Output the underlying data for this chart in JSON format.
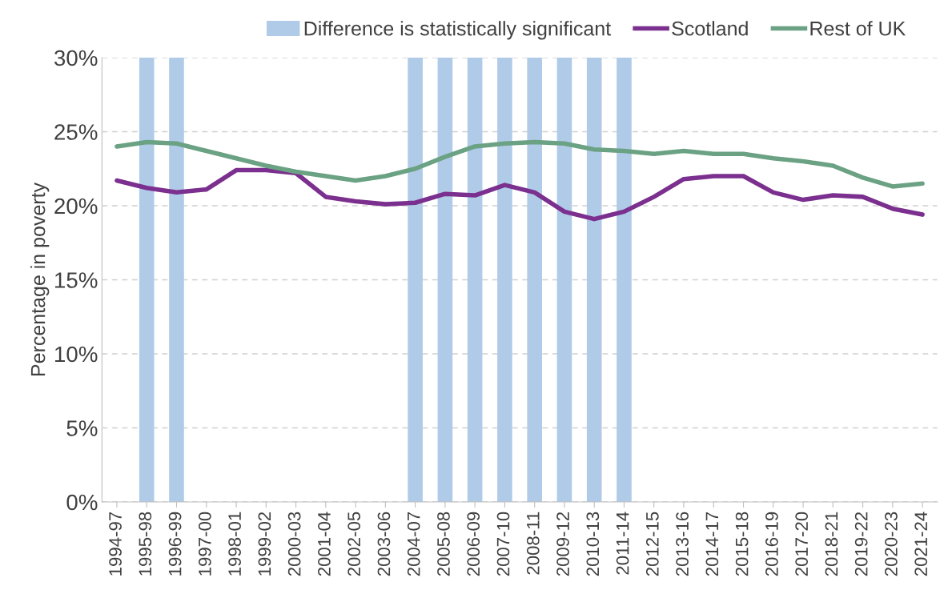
{
  "chart_data": {
    "type": "line",
    "ylabel": "Percentage in poverty",
    "categories": [
      "1994-97",
      "1995-98",
      "1996-99",
      "1997-00",
      "1998-01",
      "1999-02",
      "2000-03",
      "2001-04",
      "2002-05",
      "2003-06",
      "2004-07",
      "2005-08",
      "2006-09",
      "2007-10",
      "2008-11",
      "2009-12",
      "2010-13",
      "2011-14",
      "2012-15",
      "2013-16",
      "2014-17",
      "2015-18",
      "2016-19",
      "2017-20",
      "2018-21",
      "2019-22",
      "2020-23",
      "2021-24"
    ],
    "series": [
      {
        "name": "Difference is statistically significant",
        "type": "bar",
        "color": "#b0cbe8",
        "values": [
          null,
          30,
          30,
          null,
          null,
          null,
          null,
          null,
          null,
          null,
          30,
          30,
          30,
          30,
          30,
          30,
          30,
          30,
          null,
          null,
          null,
          null,
          null,
          null,
          null,
          null,
          null,
          null
        ]
      },
      {
        "name": "Scotland",
        "color": "#7b2f8e",
        "values": [
          21.7,
          21.2,
          20.9,
          21.1,
          22.4,
          22.4,
          22.2,
          20.6,
          20.3,
          20.1,
          20.2,
          20.8,
          20.7,
          21.4,
          20.9,
          19.6,
          19.1,
          19.6,
          20.6,
          21.8,
          22.0,
          22.0,
          20.9,
          20.4,
          20.7,
          20.6,
          19.8,
          19.4
        ]
      },
      {
        "name": "Rest of UK",
        "color": "#6aa283",
        "values": [
          24.0,
          24.3,
          24.2,
          23.7,
          23.2,
          22.7,
          22.3,
          22.0,
          21.7,
          22.0,
          22.5,
          23.3,
          24.0,
          24.2,
          24.3,
          24.2,
          23.8,
          23.7,
          23.5,
          23.7,
          23.5,
          23.5,
          23.2,
          23.0,
          22.7,
          21.9,
          21.3,
          21.5
        ]
      }
    ],
    "ylim": [
      0,
      30
    ],
    "yticks": [
      {
        "value": 0,
        "label": "0%"
      },
      {
        "value": 5,
        "label": "5%"
      },
      {
        "value": 10,
        "label": "10%"
      },
      {
        "value": 15,
        "label": "15%"
      },
      {
        "value": 20,
        "label": "20%"
      },
      {
        "value": 25,
        "label": "25%"
      },
      {
        "value": 30,
        "label": "30%"
      }
    ],
    "grid": "y",
    "legend": "top",
    "marker": "none",
    "line_style": "solid"
  }
}
